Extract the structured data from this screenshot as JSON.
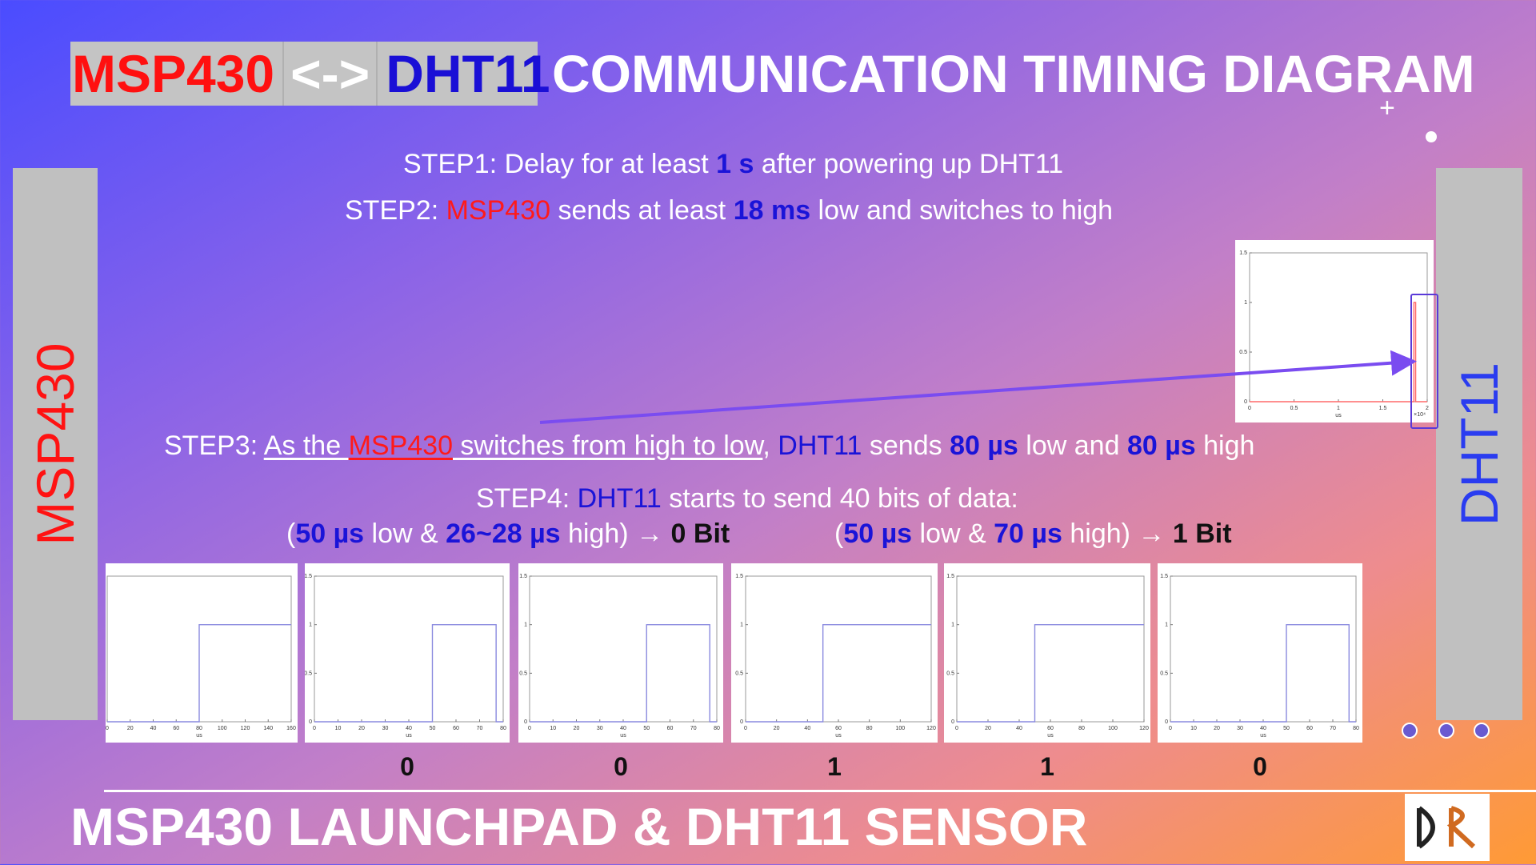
{
  "title": {
    "part1": "MSP430",
    "part2": "<->",
    "part3": "DHT11",
    "rest": "COMMUNICATION TIMING DIAGRAM"
  },
  "sidebars": {
    "left": "MSP430",
    "right": "DHT11"
  },
  "steps": {
    "step1": {
      "a": "STEP1: Delay for at least ",
      "b": "1 s",
      "c": " after powering up DHT11"
    },
    "step2": {
      "a": "STEP2: ",
      "b": "MSP430",
      "c": " sends at least ",
      "d": "18 ms",
      "e": " low and switches to high"
    },
    "step3": {
      "a": "STEP3: ",
      "b": "As the ",
      "c": "MSP430",
      "d": " switches from high to low",
      "e": ", ",
      "f": "DHT11",
      "g": " sends ",
      "h": "80 µs",
      "i": " low and ",
      "j": "80 µs",
      "k": " high"
    },
    "step4": {
      "a": "STEP4: ",
      "b": "DHT11",
      "c": " starts to send 40 bits of data:"
    },
    "bit0": {
      "a": "(",
      "b": "50 µs",
      "c": " low & ",
      "d": "26~28 µs",
      "e": " high) → ",
      "f": "0 Bit"
    },
    "bit1": {
      "a": "(",
      "b": "50 µs",
      "c": " low & ",
      "d": "70 µs",
      "e": " high) → ",
      "f": "1 Bit"
    }
  },
  "footer": "MSP430 LAUNCHPAD & DHT11 SENSOR",
  "logo_text": "DR",
  "colors": {
    "accent_red": "#ff1a1a",
    "accent_blue": "#1a14d8",
    "signal": "#8a8adf",
    "arrow": "#7a4cf0"
  },
  "chart_data": [
    {
      "type": "line",
      "id": "start-signal",
      "xlabel": "us",
      "ylim": [
        0,
        1.5
      ],
      "yticks": [
        "0",
        "0.5",
        "1",
        "1.5"
      ],
      "xticks": [
        "0",
        "0.5",
        "1",
        "1.5",
        "2"
      ],
      "xscale_note": "×10⁴",
      "x": [
        0,
        1.85,
        1.85,
        1.87,
        1.87,
        2.0
      ],
      "y": [
        0,
        0,
        1,
        1,
        0,
        0
      ]
    },
    {
      "type": "line",
      "id": "response",
      "xlabel": "us",
      "ylim": [
        0,
        1.5
      ],
      "xticks": [
        "0",
        "20",
        "40",
        "60",
        "80",
        "100",
        "120",
        "140",
        "160"
      ],
      "x": [
        0,
        80,
        80,
        160
      ],
      "y": [
        0,
        0,
        1,
        1
      ]
    },
    {
      "type": "line",
      "id": "bit-1",
      "label": "0",
      "xlabel": "us",
      "ylim": [
        0,
        1.5
      ],
      "yticks": [
        "0",
        "0.5",
        "1",
        "1.5"
      ],
      "xticks": [
        "0",
        "10",
        "20",
        "30",
        "40",
        "50",
        "60",
        "70",
        "80"
      ],
      "x": [
        0,
        50,
        50,
        77,
        77,
        80
      ],
      "y": [
        0,
        0,
        1,
        1,
        0,
        0
      ]
    },
    {
      "type": "line",
      "id": "bit-2",
      "label": "0",
      "xlabel": "us",
      "ylim": [
        0,
        1.5
      ],
      "yticks": [
        "0",
        "0.5",
        "1",
        "1.5"
      ],
      "xticks": [
        "0",
        "10",
        "20",
        "30",
        "40",
        "50",
        "60",
        "70",
        "80"
      ],
      "x": [
        0,
        50,
        50,
        77,
        77,
        80
      ],
      "y": [
        0,
        0,
        1,
        1,
        0,
        0
      ]
    },
    {
      "type": "line",
      "id": "bit-3",
      "label": "1",
      "xlabel": "us",
      "ylim": [
        0,
        1.5
      ],
      "yticks": [
        "0",
        "0.5",
        "1",
        "1.5"
      ],
      "xticks": [
        "0",
        "20",
        "40",
        "60",
        "80",
        "100",
        "120"
      ],
      "x": [
        0,
        50,
        50,
        120
      ],
      "y": [
        0,
        0,
        1,
        1
      ]
    },
    {
      "type": "line",
      "id": "bit-4",
      "label": "1",
      "xlabel": "us",
      "ylim": [
        0,
        1.5
      ],
      "yticks": [
        "0",
        "0.5",
        "1",
        "1.5"
      ],
      "xticks": [
        "0",
        "20",
        "40",
        "60",
        "80",
        "100",
        "120"
      ],
      "x": [
        0,
        50,
        50,
        120
      ],
      "y": [
        0,
        0,
        1,
        1
      ]
    },
    {
      "type": "line",
      "id": "bit-5",
      "label": "0",
      "xlabel": "us",
      "ylim": [
        0,
        1.5
      ],
      "yticks": [
        "0",
        "0.5",
        "1",
        "1.5"
      ],
      "xticks": [
        "0",
        "10",
        "20",
        "30",
        "40",
        "50",
        "60",
        "70",
        "80"
      ],
      "x": [
        0,
        50,
        50,
        77,
        77,
        80
      ],
      "y": [
        0,
        0,
        1,
        1,
        0,
        0
      ]
    }
  ]
}
